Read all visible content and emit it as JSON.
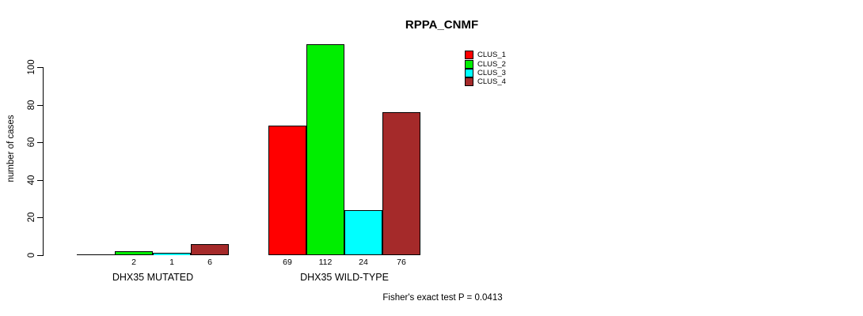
{
  "title": "RPPA_CNMF",
  "y_axis": {
    "label": "number of cases",
    "ticks": [
      "0",
      "20",
      "40",
      "60",
      "80",
      "100"
    ]
  },
  "legend": [
    {
      "label": "CLUS_1",
      "color": "#FF0000"
    },
    {
      "label": "CLUS_2",
      "color": "#00EE00"
    },
    {
      "label": "CLUS_3",
      "color": "#00FFFF"
    },
    {
      "label": "CLUS_4",
      "color": "#A52A2A"
    }
  ],
  "footer": "Fisher's exact test P = 0.0413",
  "chart_data": {
    "type": "bar",
    "title": "RPPA_CNMF",
    "xlabel": "",
    "ylabel": "number of cases",
    "ylim": [
      0,
      112
    ],
    "y_ticks": [
      0,
      20,
      40,
      60,
      80,
      100
    ],
    "grid": false,
    "legend_position": "top-right",
    "categories": [
      "DHX35 MUTATED",
      "DHX35 WILD-TYPE"
    ],
    "series": [
      {
        "name": "CLUS_1",
        "color": "#FF0000",
        "values": [
          0,
          69
        ]
      },
      {
        "name": "CLUS_2",
        "color": "#00EE00",
        "values": [
          2,
          112
        ]
      },
      {
        "name": "CLUS_3",
        "color": "#00FFFF",
        "values": [
          1,
          24
        ]
      },
      {
        "name": "CLUS_4",
        "color": "#A52A2A",
        "values": [
          6,
          76
        ]
      }
    ],
    "bar_labels": [
      [
        "",
        "2",
        "1",
        "6"
      ],
      [
        "69",
        "112",
        "24",
        "76"
      ]
    ],
    "annotation": "Fisher's exact test P = 0.0413"
  }
}
